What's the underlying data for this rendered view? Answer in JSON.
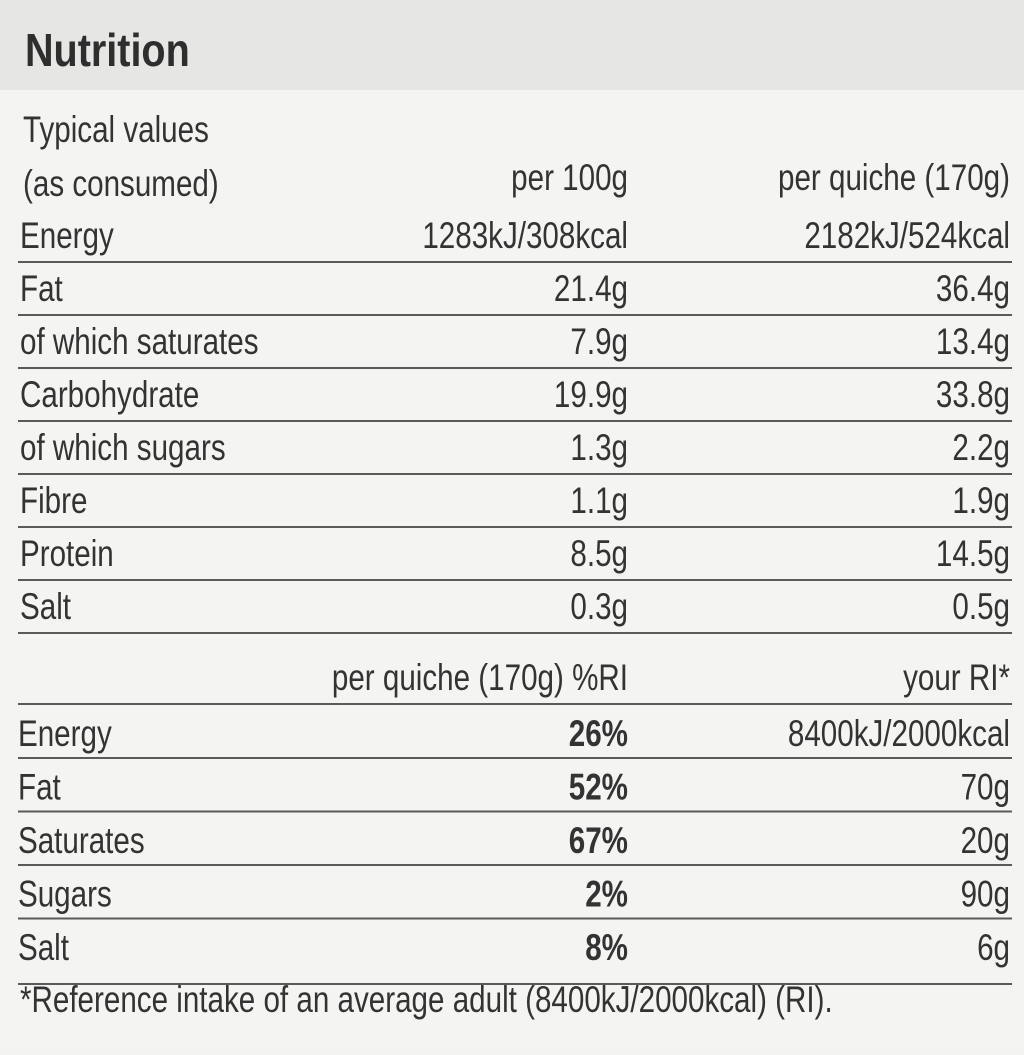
{
  "title": "Nutrition",
  "header": {
    "label": [
      "Typical values",
      "(as consumed)"
    ],
    "col1": "per 100g",
    "col2": "per quiche (170g)"
  },
  "rows": [
    [
      "Energy",
      "1283kJ/308kcal",
      "2182kJ/524kcal"
    ],
    [
      "Fat",
      "21.4g",
      "36.4g"
    ],
    [
      "of which saturates",
      "7.9g",
      "13.4g"
    ],
    [
      "Carbohydrate",
      "19.9g",
      "33.8g"
    ],
    [
      "of which sugars",
      "1.3g",
      "2.2g"
    ],
    [
      "Fibre",
      "1.1g",
      "1.9g"
    ],
    [
      "Protein",
      "8.5g",
      "14.5g"
    ],
    [
      "Salt",
      "0.3g",
      "0.5g"
    ]
  ],
  "ri_header": {
    "col1": "per quiche (170g) %RI",
    "col2": "your RI*"
  },
  "ri_rows": [
    [
      "Energy",
      "26%",
      "8400kJ/2000kcal"
    ],
    [
      "Fat",
      "52%",
      "70g"
    ],
    [
      "Saturates",
      "67%",
      "20g"
    ],
    [
      "Sugars",
      "2%",
      "90g"
    ],
    [
      "Salt",
      "8%",
      "6g"
    ]
  ],
  "footnote": "*Reference intake of an average adult (8400kJ/2000kcal) (RI)."
}
